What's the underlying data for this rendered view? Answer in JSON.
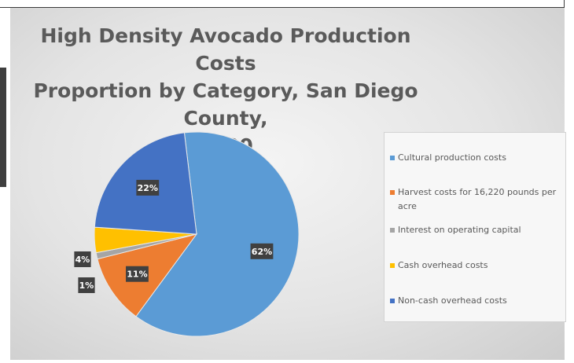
{
  "chart_data": {
    "type": "pie",
    "title_lines": [
      "High Density Avocado Production Costs",
      "Proportion by Category, San Diego County,",
      "2020"
    ],
    "slices": [
      {
        "label": "Cultural production costs",
        "value": 62,
        "data_label": "62%",
        "color": "#5b9bd5"
      },
      {
        "label": "Harvest costs for 16,220 pounds per acre",
        "value": 11,
        "data_label": "11%",
        "color": "#ed7d31"
      },
      {
        "label": "Interest on operating capital",
        "value": 1,
        "data_label": "1%",
        "color": "#a5a5a5"
      },
      {
        "label": "Cash overhead costs",
        "value": 4,
        "data_label": "4%",
        "color": "#ffc000"
      },
      {
        "label": "Non-cash overhead costs",
        "value": 22,
        "data_label": "22%",
        "color": "#4472c4"
      }
    ],
    "legend_position": "right"
  }
}
